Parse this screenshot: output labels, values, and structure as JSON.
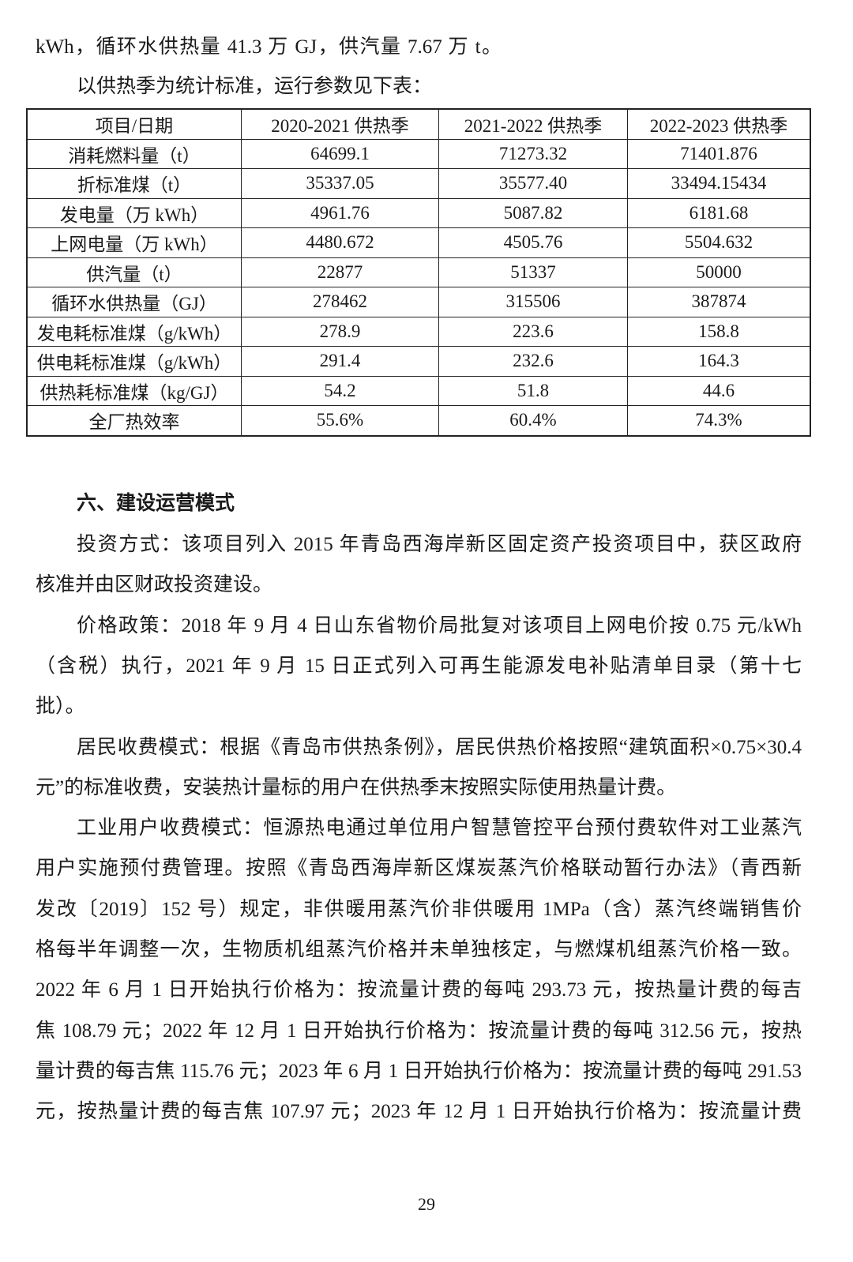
{
  "intro_lines": [
    "kWh，循环水供热量 41.3 万 GJ，供汽量 7.67 万 t。",
    "以供热季为统计标准，运行参数见下表："
  ],
  "table": {
    "headers": [
      "项目/日期",
      "2020-2021 供热季",
      "2021-2022 供热季",
      "2022-2023 供热季"
    ],
    "rows": [
      [
        "消耗燃料量（t）",
        "64699.1",
        "71273.32",
        "71401.876"
      ],
      [
        "折标准煤（t）",
        "35337.05",
        "35577.40",
        "33494.15434"
      ],
      [
        "发电量（万 kWh）",
        "4961.76",
        "5087.82",
        "6181.68"
      ],
      [
        "上网电量（万 kWh）",
        "4480.672",
        "4505.76",
        "5504.632"
      ],
      [
        "供汽量（t）",
        "22877",
        "51337",
        "50000"
      ],
      [
        "循环水供热量（GJ）",
        "278462",
        "315506",
        "387874"
      ],
      [
        "发电耗标准煤（g/kWh）",
        "278.9",
        "223.6",
        "158.8"
      ],
      [
        "供电耗标准煤（g/kWh）",
        "291.4",
        "232.6",
        "164.3"
      ],
      [
        "供热耗标准煤（kg/GJ）",
        "54.2",
        "51.8",
        "44.6"
      ],
      [
        "全厂热效率",
        "55.6%",
        "60.4%",
        "74.3%"
      ]
    ]
  },
  "section_heading": "六、建设运营模式",
  "body_lines": [
    "投资方式：该项目列入 2015 年青岛西海岸新区固定资产投资项目中，获区政府",
    "核准并由区财政投资建设。",
    "价格政策：2018 年 9 月 4 日山东省物价局批复对该项目上网电价按 0.75 元/kWh",
    "（含税）执行，2021 年 9 月 15 日正式列入可再生能源发电补贴清单目录（第十七",
    "批）。",
    "居民收费模式：根据《青岛市供热条例》，居民供热价格按照“建筑面积×0.75×30.4",
    "元”的标准收费，安装热计量标的用户在供热季末按照实际使用热量计费。",
    "工业用户收费模式：恒源热电通过单位用户智慧管控平台预付费软件对工业蒸汽",
    "用户实施预付费管理。按照《青岛西海岸新区煤炭蒸汽价格联动暂行办法》（青西新",
    "发改〔2019〕152 号）规定，非供暖用蒸汽价非供暖用 1MPa（含）蒸汽终端销售价",
    "格每半年调整一次，生物质机组蒸汽价格并未单独核定，与燃煤机组蒸汽价格一致。",
    "2022 年 6 月 1 日开始执行价格为：按流量计费的每吨 293.73 元，按热量计费的每吉",
    "焦 108.79 元；2022 年 12 月 1 日开始执行价格为：按流量计费的每吨 312.56 元，按热",
    "量计费的每吉焦 115.76 元；2023 年 6 月 1 日开始执行价格为：按流量计费的每吨 291.53",
    "元，按热量计费的每吉焦 107.97 元；2023 年 12 月 1 日开始执行价格为：按流量计费"
  ],
  "page_number": "29"
}
